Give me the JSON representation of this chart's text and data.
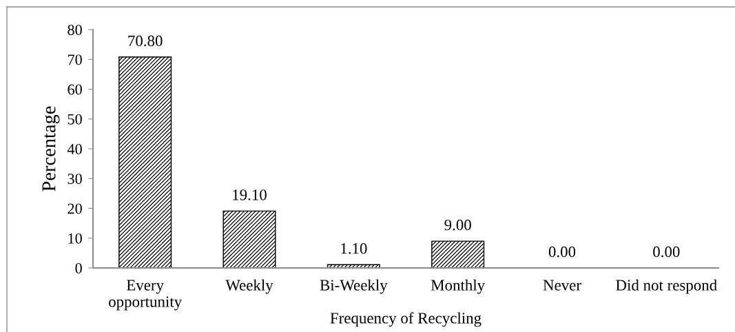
{
  "chart_data": {
    "type": "bar",
    "categories": [
      "Every\nopportunity",
      "Weekly",
      "Bi-Weekly",
      "Monthly",
      "Never",
      "Did not respond"
    ],
    "values": [
      70.8,
      19.1,
      1.1,
      9.0,
      0.0,
      0.0
    ],
    "value_labels": [
      "70.80",
      "19.10",
      "1.10",
      "9.00",
      "0.00",
      "0.00"
    ],
    "color": "#000000",
    "xlabel": "Frequency of Recycling",
    "ylabel": "Percentage",
    "ylim": [
      0,
      80
    ],
    "yticks": [
      0,
      10,
      20,
      30,
      40,
      50,
      60,
      70,
      80
    ],
    "grid": false
  }
}
